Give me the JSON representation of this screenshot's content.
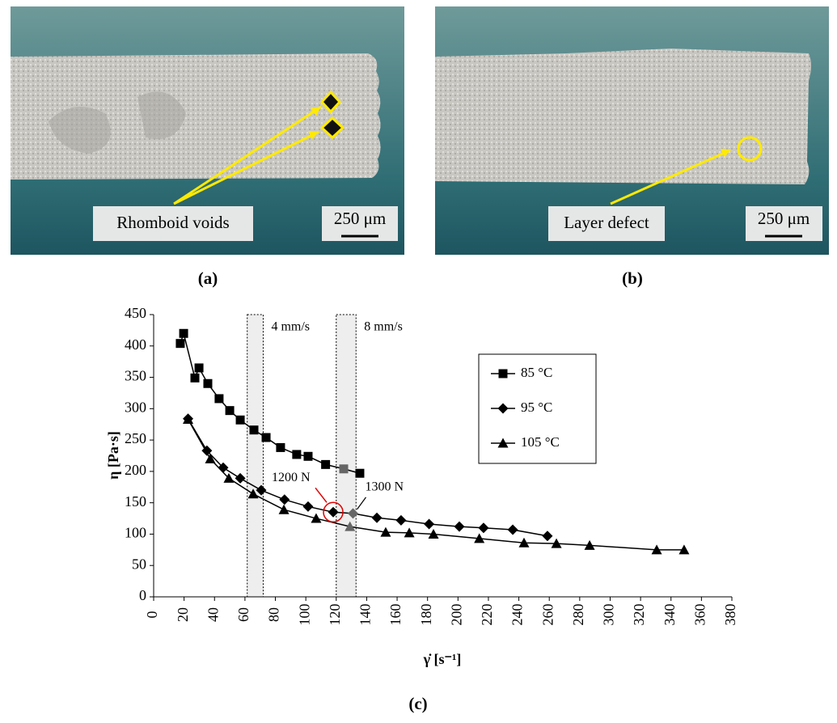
{
  "panels": {
    "a": {
      "caption": "(a)",
      "label": "Rhomboid voids",
      "scale": "250 μm"
    },
    "b": {
      "caption": "(b)",
      "label": "Layer defect",
      "scale": "250 μm"
    }
  },
  "chart_data": {
    "type": "line",
    "caption": "(c)",
    "x_label": "γ̇ [s⁻¹]",
    "y_label": "η [Pa·s]",
    "xlim": [
      0,
      380
    ],
    "ylim": [
      0,
      450
    ],
    "xticks": [
      0,
      20,
      40,
      60,
      80,
      100,
      120,
      140,
      160,
      180,
      200,
      220,
      240,
      260,
      280,
      300,
      320,
      340,
      360,
      380
    ],
    "yticks": [
      0,
      50,
      100,
      150,
      200,
      250,
      300,
      350,
      400,
      450
    ],
    "legend": "upper right",
    "bands": [
      {
        "range": [
          61.5,
          72
        ],
        "label": "4 mm/s"
      },
      {
        "range": [
          120,
          133
        ],
        "label": "8 mm/s"
      }
    ],
    "annotations": [
      "1200 N",
      "1300 N"
    ],
    "series": [
      {
        "name": "85 °C",
        "color": "#000000",
        "marker": "square",
        "highlight": {
          "index": 14,
          "color": "#666666"
        },
        "x": [
          17.5,
          19.7,
          27.1,
          29.8,
          35.6,
          43,
          50,
          56.9,
          65.9,
          73.9,
          83.4,
          94,
          101.5,
          113,
          124.9,
          135.5
        ],
        "values": [
          404,
          420,
          349,
          365,
          340,
          316,
          297,
          282,
          266,
          254,
          238,
          227,
          224,
          211,
          204,
          197
        ]
      },
      {
        "name": "95 °C",
        "color": "#000000",
        "marker": "diamond",
        "highlight": {
          "index": 8,
          "color": "#666666"
        },
        "x": [
          22.6,
          35,
          45.7,
          56.9,
          70.7,
          86,
          101.5,
          118,
          131,
          146.7,
          162.6,
          181,
          200.9,
          216.8,
          236,
          258.8
        ],
        "values": [
          284,
          233,
          206,
          189,
          170,
          155,
          144,
          135,
          133,
          126,
          122,
          116,
          112,
          110,
          107,
          97
        ]
      },
      {
        "name": "105 °C",
        "color": "#000000",
        "marker": "triangle",
        "highlight": {
          "index": 6,
          "color": "#666666"
        },
        "x": [
          22.6,
          37.2,
          49.4,
          65.4,
          85.6,
          106.8,
          129,
          152.5,
          168,
          183.9,
          214,
          243.4,
          264.7,
          286.5,
          330.6,
          348.6
        ],
        "values": [
          283,
          220,
          189,
          164,
          139,
          125,
          112,
          103,
          102,
          100,
          93,
          86,
          85,
          82,
          75,
          75
        ]
      }
    ]
  }
}
